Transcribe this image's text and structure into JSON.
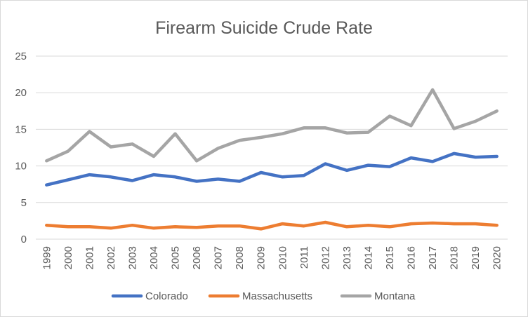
{
  "chart_data": {
    "type": "line",
    "title": "Firearm Suicide Crude Rate",
    "xlabel": "",
    "ylabel": "",
    "categories": [
      "1999",
      "2000",
      "2001",
      "2002",
      "2003",
      "2004",
      "2005",
      "2006",
      "2007",
      "2008",
      "2009",
      "2010",
      "2011",
      "2012",
      "2013",
      "2014",
      "2015",
      "2016",
      "2017",
      "2018",
      "2019",
      "2020"
    ],
    "ylim": [
      0,
      25
    ],
    "yticks": [
      "0",
      "5",
      "10",
      "15",
      "20",
      "25"
    ],
    "grid": true,
    "legend_position": "bottom",
    "series": [
      {
        "name": "Colorado",
        "color": "#4472C4",
        "values": [
          7.4,
          8.1,
          8.8,
          8.5,
          8.0,
          8.8,
          8.5,
          7.9,
          8.2,
          7.9,
          9.1,
          8.5,
          8.7,
          10.3,
          9.4,
          10.1,
          9.9,
          11.1,
          10.6,
          11.7,
          11.2,
          11.3
        ]
      },
      {
        "name": "Massachusetts",
        "color": "#ED7D31",
        "values": [
          1.9,
          1.7,
          1.7,
          1.5,
          1.9,
          1.5,
          1.7,
          1.6,
          1.8,
          1.8,
          1.4,
          2.1,
          1.8,
          2.3,
          1.7,
          1.9,
          1.7,
          2.1,
          2.2,
          2.1,
          2.1,
          1.9
        ]
      },
      {
        "name": "Montana",
        "color": "#A5A5A5",
        "values": [
          10.7,
          12.0,
          14.7,
          12.6,
          13.0,
          11.3,
          14.4,
          10.7,
          12.4,
          13.5,
          13.9,
          14.4,
          15.2,
          15.2,
          14.5,
          14.6,
          16.8,
          15.5,
          20.4,
          15.1,
          16.1,
          17.5
        ]
      }
    ]
  }
}
